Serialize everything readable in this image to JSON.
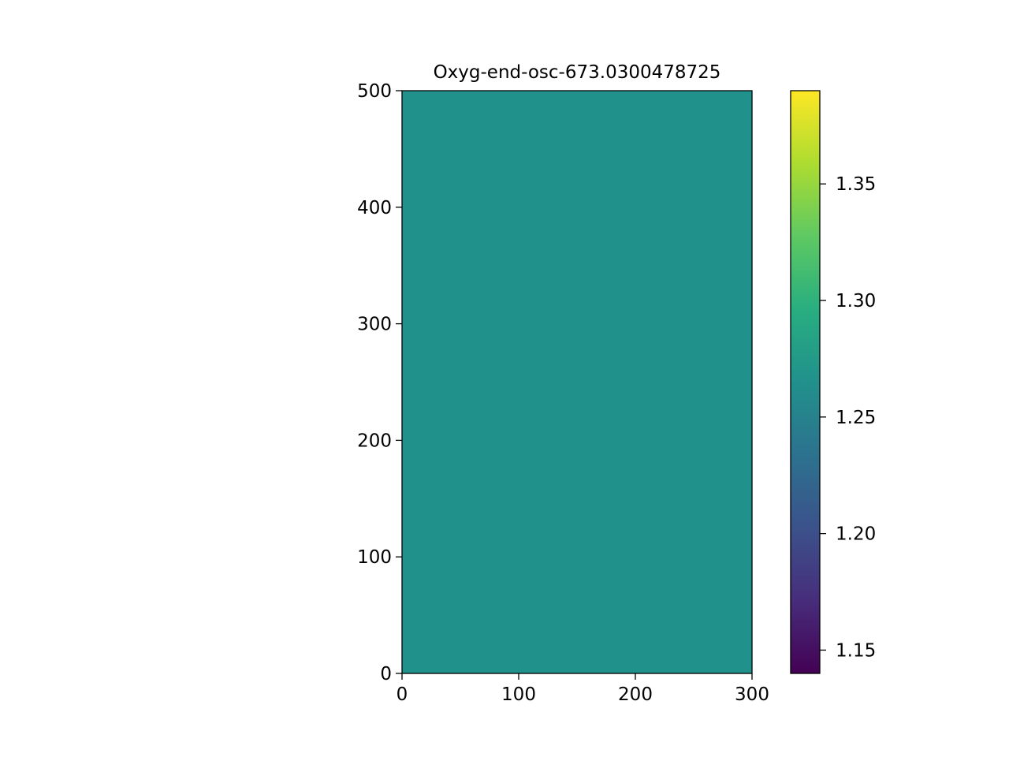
{
  "chart_data": {
    "type": "heatmap",
    "title": "Oxyg-end-osc-673.0300478725",
    "xlabel": "",
    "ylabel": "",
    "xlim": [
      0,
      300
    ],
    "ylim": [
      0,
      500
    ],
    "x_ticks": [
      0,
      100,
      200,
      300
    ],
    "y_ticks": [
      0,
      100,
      200,
      300,
      400,
      500
    ],
    "field_value": 1.265,
    "field_color": "#21918c",
    "colorbar": {
      "range": [
        1.14,
        1.39
      ],
      "ticks": [
        1.15,
        1.2,
        1.25,
        1.3,
        1.35
      ],
      "tick_labels": [
        "1.15",
        "1.20",
        "1.25",
        "1.30",
        "1.35"
      ],
      "colormap": "viridis",
      "colormap_stops": [
        "#440154",
        "#472d7b",
        "#3b528b",
        "#2c728e",
        "#21918c",
        "#28ae80",
        "#5ec962",
        "#addc30",
        "#fde725"
      ]
    },
    "grid": false
  }
}
